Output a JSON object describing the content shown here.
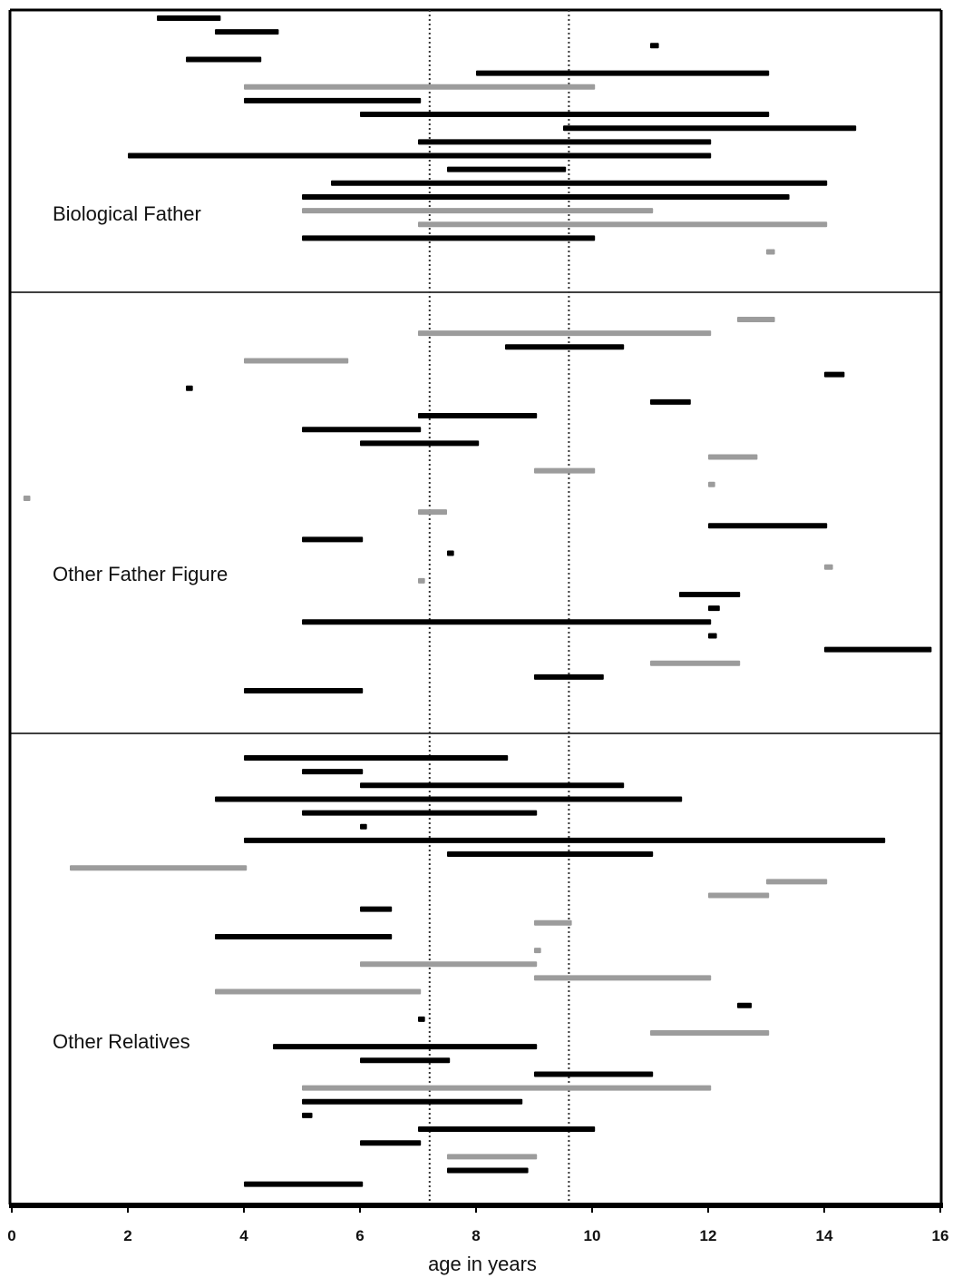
{
  "chart_data": {
    "type": "timeline",
    "xlabel": "age in years",
    "xlim": [
      0,
      16
    ],
    "x_ticks": [
      "0",
      "2",
      "4",
      "6",
      "8",
      "10",
      "12",
      "14",
      "16"
    ],
    "reference_lines": [
      7.2,
      9.6
    ],
    "colors": {
      "black": "#000000",
      "gray": "#9c9c9c"
    },
    "panels": [
      {
        "label": "Biological Father",
        "bars": [
          {
            "start": 2.5,
            "end": 3.6,
            "color": "black"
          },
          {
            "start": 3.5,
            "end": 4.6,
            "color": "black"
          },
          {
            "start": 11.0,
            "end": 11.15,
            "color": "black"
          },
          {
            "start": 3.0,
            "end": 4.3,
            "color": "black"
          },
          {
            "start": 8.0,
            "end": 13.05,
            "color": "black"
          },
          {
            "start": 4.0,
            "end": 10.05,
            "color": "gray"
          },
          {
            "start": 4.0,
            "end": 7.05,
            "color": "black"
          },
          {
            "start": 6.0,
            "end": 13.05,
            "color": "black"
          },
          {
            "start": 9.5,
            "end": 14.55,
            "color": "black"
          },
          {
            "start": 7.0,
            "end": 12.05,
            "color": "black"
          },
          {
            "start": 2.0,
            "end": 12.05,
            "color": "black"
          },
          {
            "start": 7.5,
            "end": 9.55,
            "color": "black"
          },
          {
            "start": 5.5,
            "end": 14.05,
            "color": "black"
          },
          {
            "start": 5.0,
            "end": 13.4,
            "color": "black"
          },
          {
            "start": 5.0,
            "end": 11.05,
            "color": "gray"
          },
          {
            "start": 7.0,
            "end": 14.05,
            "color": "gray"
          },
          {
            "start": 5.0,
            "end": 10.05,
            "color": "black"
          },
          {
            "start": 13.0,
            "end": 13.15,
            "color": "gray"
          }
        ]
      },
      {
        "label": "Other Father Figure",
        "bars": [
          {
            "start": 12.5,
            "end": 13.15,
            "color": "gray"
          },
          {
            "start": 7.0,
            "end": 12.05,
            "color": "gray"
          },
          {
            "start": 8.5,
            "end": 10.55,
            "color": "black"
          },
          {
            "start": 4.0,
            "end": 5.8,
            "color": "gray"
          },
          {
            "start": 14.0,
            "end": 14.35,
            "color": "black"
          },
          {
            "start": 3.0,
            "end": 3.12,
            "color": "black"
          },
          {
            "start": 11.0,
            "end": 11.7,
            "color": "black"
          },
          {
            "start": 7.0,
            "end": 9.05,
            "color": "black"
          },
          {
            "start": 5.0,
            "end": 7.05,
            "color": "black"
          },
          {
            "start": 6.0,
            "end": 8.05,
            "color": "black"
          },
          {
            "start": 12.0,
            "end": 12.85,
            "color": "gray"
          },
          {
            "start": 9.0,
            "end": 10.05,
            "color": "gray"
          },
          {
            "start": 12.0,
            "end": 12.12,
            "color": "gray"
          },
          {
            "start": 0.2,
            "end": 0.32,
            "color": "gray"
          },
          {
            "start": 7.0,
            "end": 7.5,
            "color": "gray"
          },
          {
            "start": 12.0,
            "end": 14.05,
            "color": "black"
          },
          {
            "start": 5.0,
            "end": 6.05,
            "color": "black"
          },
          {
            "start": 7.5,
            "end": 7.62,
            "color": "black"
          },
          {
            "start": 14.0,
            "end": 14.15,
            "color": "gray"
          },
          {
            "start": 7.0,
            "end": 7.12,
            "color": "gray"
          },
          {
            "start": 11.5,
            "end": 12.55,
            "color": "black"
          },
          {
            "start": 12.0,
            "end": 12.2,
            "color": "black"
          },
          {
            "start": 5.0,
            "end": 12.05,
            "color": "black"
          },
          {
            "start": 12.0,
            "end": 12.15,
            "color": "black"
          },
          {
            "start": 14.0,
            "end": 15.85,
            "color": "black"
          },
          {
            "start": 11.0,
            "end": 12.55,
            "color": "gray"
          },
          {
            "start": 9.0,
            "end": 10.2,
            "color": "black"
          },
          {
            "start": 4.0,
            "end": 6.05,
            "color": "black"
          }
        ]
      },
      {
        "label": "Other Relatives",
        "bars": [
          {
            "start": 4.0,
            "end": 8.55,
            "color": "black"
          },
          {
            "start": 5.0,
            "end": 6.05,
            "color": "black"
          },
          {
            "start": 6.0,
            "end": 10.55,
            "color": "black"
          },
          {
            "start": 3.5,
            "end": 11.55,
            "color": "black"
          },
          {
            "start": 5.0,
            "end": 9.05,
            "color": "black"
          },
          {
            "start": 6.0,
            "end": 6.12,
            "color": "black"
          },
          {
            "start": 4.0,
            "end": 15.05,
            "color": "black"
          },
          {
            "start": 7.5,
            "end": 11.05,
            "color": "black"
          },
          {
            "start": 1.0,
            "end": 4.05,
            "color": "gray"
          },
          {
            "start": 13.0,
            "end": 14.05,
            "color": "gray"
          },
          {
            "start": 12.0,
            "end": 13.05,
            "color": "gray"
          },
          {
            "start": 6.0,
            "end": 6.55,
            "color": "black"
          },
          {
            "start": 9.0,
            "end": 9.65,
            "color": "gray"
          },
          {
            "start": 3.5,
            "end": 6.55,
            "color": "black"
          },
          {
            "start": 9.0,
            "end": 9.12,
            "color": "gray"
          },
          {
            "start": 6.0,
            "end": 9.05,
            "color": "gray"
          },
          {
            "start": 9.0,
            "end": 12.05,
            "color": "gray"
          },
          {
            "start": 3.5,
            "end": 7.05,
            "color": "gray"
          },
          {
            "start": 12.5,
            "end": 12.75,
            "color": "black"
          },
          {
            "start": 7.0,
            "end": 7.12,
            "color": "black"
          },
          {
            "start": 11.0,
            "end": 13.05,
            "color": "gray"
          },
          {
            "start": 4.5,
            "end": 9.05,
            "color": "black"
          },
          {
            "start": 6.0,
            "end": 7.55,
            "color": "black"
          },
          {
            "start": 9.0,
            "end": 11.05,
            "color": "black"
          },
          {
            "start": 5.0,
            "end": 12.05,
            "color": "gray"
          },
          {
            "start": 5.0,
            "end": 8.8,
            "color": "black"
          },
          {
            "start": 5.0,
            "end": 5.18,
            "color": "black"
          },
          {
            "start": 7.0,
            "end": 10.05,
            "color": "black"
          },
          {
            "start": 6.0,
            "end": 7.05,
            "color": "black"
          },
          {
            "start": 7.5,
            "end": 9.05,
            "color": "gray"
          },
          {
            "start": 7.5,
            "end": 8.9,
            "color": "black"
          },
          {
            "start": 4.0,
            "end": 6.05,
            "color": "black"
          }
        ]
      }
    ]
  }
}
